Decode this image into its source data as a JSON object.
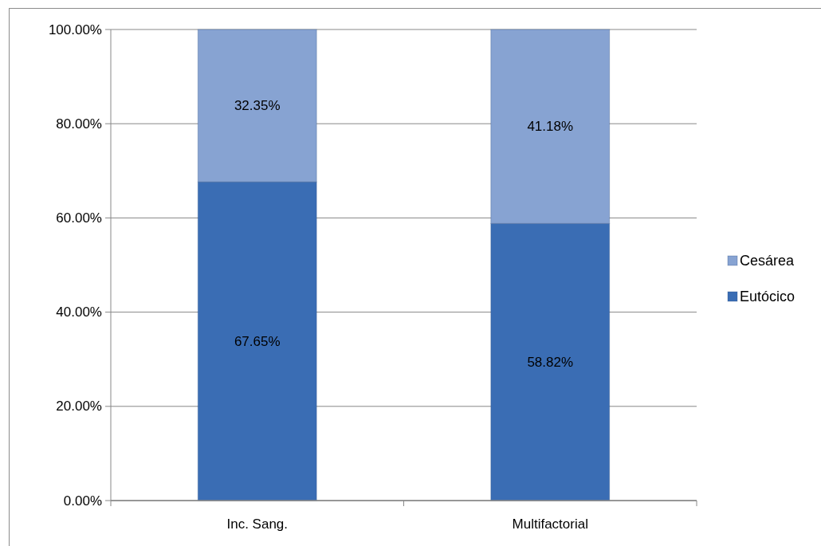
{
  "chart_data": {
    "type": "bar",
    "stacked": true,
    "categories": [
      "Inc. Sang.",
      "Multifactorial"
    ],
    "series": [
      {
        "name": "Eutócico",
        "color": "#3a6db4",
        "values": [
          67.65,
          58.82
        ],
        "value_labels": [
          "67.65%",
          "58.82%"
        ]
      },
      {
        "name": "Cesárea",
        "color": "#87a3d2",
        "values": [
          32.35,
          41.18
        ],
        "value_labels": [
          "32.35%",
          "41.18%"
        ]
      }
    ],
    "ylim": [
      0,
      100
    ],
    "yticks": [
      {
        "value": 0,
        "label": "0.00%"
      },
      {
        "value": 20,
        "label": "20.00%"
      },
      {
        "value": 40,
        "label": "40.00%"
      },
      {
        "value": 60,
        "label": "60.00%"
      },
      {
        "value": 80,
        "label": "80.00%"
      },
      {
        "value": 100,
        "label": "100.00%"
      }
    ],
    "grid": "y",
    "legend": "right"
  }
}
